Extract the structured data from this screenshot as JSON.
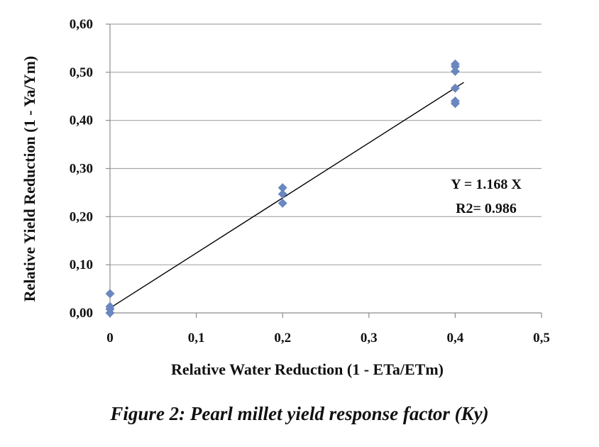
{
  "caption": "Figure 2: Pearl millet yield response factor (Ky)",
  "chart_data": {
    "type": "scatter",
    "xlabel": "Relative Water Reduction (1 - ETa/ETm)",
    "ylabel": "Relative Yield Reduction  (1 - Ya/Ym)",
    "xlim": [
      0,
      0.5
    ],
    "ylim": [
      0,
      0.6
    ],
    "x_ticks": [
      "0",
      "0,1",
      "0,2",
      "0,3",
      "0,4",
      "0,5"
    ],
    "y_ticks": [
      "0,00",
      "0,10",
      "0,20",
      "0,30",
      "0,40",
      "0,50",
      "0,60"
    ],
    "grid": "horizontal",
    "marker_color": "#6a87c0",
    "line_color": "#000000",
    "points": [
      {
        "x": 0.0,
        "y": 0.04
      },
      {
        "x": 0.0,
        "y": 0.013
      },
      {
        "x": 0.0,
        "y": 0.008
      },
      {
        "x": 0.0,
        "y": 0.0
      },
      {
        "x": 0.2,
        "y": 0.26
      },
      {
        "x": 0.2,
        "y": 0.247
      },
      {
        "x": 0.2,
        "y": 0.228
      },
      {
        "x": 0.4,
        "y": 0.517
      },
      {
        "x": 0.4,
        "y": 0.512
      },
      {
        "x": 0.4,
        "y": 0.502
      },
      {
        "x": 0.4,
        "y": 0.467
      },
      {
        "x": 0.4,
        "y": 0.44
      },
      {
        "x": 0.4,
        "y": 0.435
      }
    ],
    "trendline": {
      "x": [
        0.0,
        0.41
      ],
      "y": [
        0.01,
        0.479
      ]
    },
    "annotations": {
      "equation": "Y = 1.168 X",
      "r2": "R2= 0.986"
    }
  }
}
